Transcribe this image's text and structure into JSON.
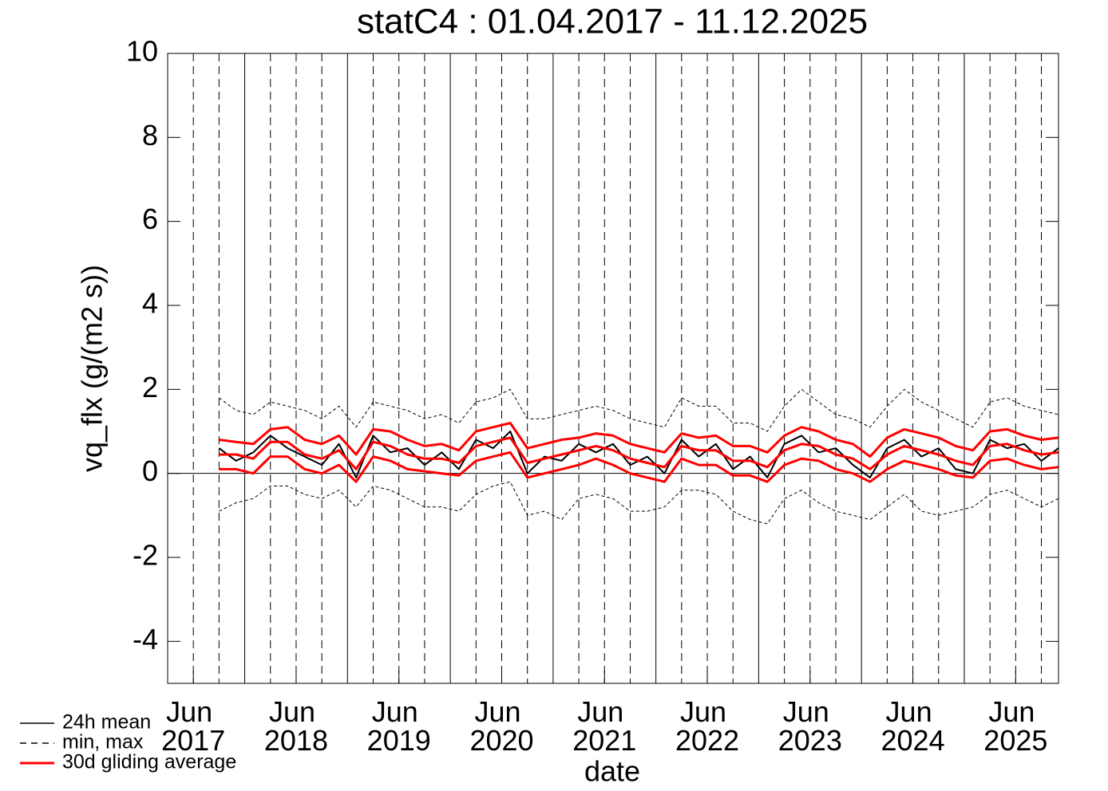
{
  "chart_data": {
    "type": "line",
    "title": "statC4 : 01.04.2017 - 11.12.2025",
    "x_label": "date",
    "y_label": "vq_flx (g/(m2 s))",
    "xlim": [
      "2017-04",
      "2025-12"
    ],
    "ylim": [
      -5,
      10
    ],
    "yticks": [
      -4,
      -2,
      0,
      2,
      4,
      6,
      8,
      10
    ],
    "xticks": [
      {
        "value": "2017-07",
        "label": "Jun 2017"
      },
      {
        "value": "2018-07",
        "label": "Jun 2018"
      },
      {
        "value": "2019-07",
        "label": "Jun 2019"
      },
      {
        "value": "2020-07",
        "label": "Jun 2020"
      },
      {
        "value": "2021-07",
        "label": "Jun 2021"
      },
      {
        "value": "2022-07",
        "label": "Jun 2022"
      },
      {
        "value": "2023-07",
        "label": "Jun 2023"
      },
      {
        "value": "2024-07",
        "label": "Jun 2024"
      },
      {
        "value": "2025-07",
        "label": "Jun 2025"
      }
    ],
    "xgrid_major": [
      "2018-01",
      "2019-01",
      "2020-01",
      "2021-01",
      "2022-01",
      "2023-01",
      "2024-01",
      "2025-01"
    ],
    "xgrid_minor": [
      "2017-07",
      "2017-10",
      "2018-04",
      "2018-07",
      "2018-10",
      "2019-04",
      "2019-07",
      "2019-10",
      "2020-04",
      "2020-07",
      "2020-10",
      "2021-04",
      "2021-07",
      "2021-10",
      "2022-04",
      "2022-07",
      "2022-10",
      "2023-04",
      "2023-07",
      "2023-10",
      "2024-04",
      "2024-07",
      "2024-10",
      "2025-04",
      "2025-07",
      "2025-10"
    ],
    "hline": 0,
    "x": [
      "2017-10",
      "2017-12",
      "2018-02",
      "2018-04",
      "2018-06",
      "2018-08",
      "2018-10",
      "2018-12",
      "2019-02",
      "2019-04",
      "2019-06",
      "2019-08",
      "2019-10",
      "2019-12",
      "2020-02",
      "2020-04",
      "2020-06",
      "2020-08",
      "2020-10",
      "2020-12",
      "2021-02",
      "2021-04",
      "2021-06",
      "2021-08",
      "2021-10",
      "2021-12",
      "2022-02",
      "2022-04",
      "2022-06",
      "2022-08",
      "2022-10",
      "2022-12",
      "2023-02",
      "2023-04",
      "2023-06",
      "2023-08",
      "2023-10",
      "2023-12",
      "2024-02",
      "2024-04",
      "2024-06",
      "2024-08",
      "2024-10",
      "2024-12",
      "2025-02",
      "2025-04",
      "2025-06",
      "2025-08",
      "2025-10",
      "2025-12"
    ],
    "legend": "bottom-left",
    "series": [
      {
        "name": "24h mean",
        "color": "#000000",
        "style": "solid",
        "values": [
          0.6,
          0.3,
          0.5,
          0.9,
          0.6,
          0.4,
          0.2,
          0.7,
          -0.1,
          0.9,
          0.5,
          0.6,
          0.2,
          0.5,
          0.1,
          0.8,
          0.6,
          1.0,
          0.0,
          0.4,
          0.3,
          0.7,
          0.5,
          0.7,
          0.2,
          0.4,
          0.0,
          0.8,
          0.4,
          0.7,
          0.1,
          0.4,
          -0.1,
          0.7,
          0.9,
          0.5,
          0.6,
          0.2,
          -0.1,
          0.6,
          0.8,
          0.4,
          0.6,
          0.1,
          0.0,
          0.8,
          0.6,
          0.7,
          0.3,
          0.6
        ]
      },
      {
        "name": "min, max",
        "color": "#000000",
        "style": "dashed",
        "values": [
          1.8,
          1.5,
          1.4,
          1.7,
          1.6,
          1.5,
          1.3,
          1.6,
          1.1,
          1.7,
          1.6,
          1.5,
          1.3,
          1.4,
          1.2,
          1.7,
          1.8,
          2.0,
          1.3,
          1.3,
          1.4,
          1.5,
          1.6,
          1.5,
          1.3,
          1.2,
          1.1,
          1.8,
          1.6,
          1.6,
          1.2,
          1.2,
          1.0,
          1.6,
          2.0,
          1.7,
          1.4,
          1.3,
          1.1,
          1.6,
          2.0,
          1.7,
          1.5,
          1.3,
          1.1,
          1.7,
          1.8,
          1.6,
          1.5,
          1.4
        ],
        "lows": [
          -0.9,
          -0.7,
          -0.6,
          -0.3,
          -0.3,
          -0.5,
          -0.6,
          -0.4,
          -0.8,
          -0.3,
          -0.4,
          -0.6,
          -0.8,
          -0.8,
          -0.9,
          -0.5,
          -0.3,
          -0.2,
          -1.0,
          -0.9,
          -1.1,
          -0.6,
          -0.5,
          -0.6,
          -0.9,
          -0.9,
          -0.8,
          -0.4,
          -0.4,
          -0.5,
          -0.9,
          -1.1,
          -1.2,
          -0.6,
          -0.4,
          -0.7,
          -0.9,
          -1.0,
          -1.1,
          -0.8,
          -0.5,
          -0.9,
          -1.0,
          -0.9,
          -0.8,
          -0.5,
          -0.4,
          -0.6,
          -0.8,
          -0.6
        ]
      },
      {
        "name": "30d gliding average",
        "color": "#ff0000",
        "style": "band",
        "values": [
          0.45,
          0.45,
          0.35,
          0.75,
          0.75,
          0.45,
          0.35,
          0.55,
          0.1,
          0.75,
          0.65,
          0.45,
          0.35,
          0.35,
          0.25,
          0.65,
          0.75,
          0.85,
          0.25,
          0.35,
          0.45,
          0.55,
          0.65,
          0.55,
          0.35,
          0.25,
          0.15,
          0.65,
          0.55,
          0.55,
          0.3,
          0.3,
          0.15,
          0.55,
          0.7,
          0.65,
          0.45,
          0.35,
          0.1,
          0.45,
          0.65,
          0.55,
          0.45,
          0.3,
          0.2,
          0.65,
          0.7,
          0.55,
          0.45,
          0.5
        ],
        "upper": [
          0.8,
          0.75,
          0.7,
          1.05,
          1.1,
          0.8,
          0.7,
          0.9,
          0.45,
          1.05,
          1.0,
          0.8,
          0.65,
          0.7,
          0.55,
          1.0,
          1.1,
          1.2,
          0.6,
          0.7,
          0.8,
          0.85,
          0.95,
          0.9,
          0.7,
          0.6,
          0.5,
          0.95,
          0.85,
          0.9,
          0.65,
          0.65,
          0.5,
          0.9,
          1.1,
          1.0,
          0.8,
          0.7,
          0.4,
          0.85,
          1.05,
          0.95,
          0.85,
          0.65,
          0.55,
          1.0,
          1.05,
          0.9,
          0.8,
          0.85
        ],
        "lower": [
          0.1,
          0.1,
          0.0,
          0.4,
          0.4,
          0.1,
          0.0,
          0.2,
          -0.2,
          0.4,
          0.3,
          0.1,
          0.05,
          0.0,
          -0.05,
          0.3,
          0.4,
          0.5,
          -0.1,
          0.0,
          0.1,
          0.2,
          0.35,
          0.2,
          0.0,
          -0.1,
          -0.2,
          0.35,
          0.2,
          0.2,
          -0.05,
          -0.05,
          -0.2,
          0.2,
          0.35,
          0.3,
          0.1,
          0.0,
          -0.2,
          0.1,
          0.3,
          0.2,
          0.1,
          -0.05,
          -0.1,
          0.3,
          0.35,
          0.2,
          0.1,
          0.15
        ]
      }
    ]
  }
}
